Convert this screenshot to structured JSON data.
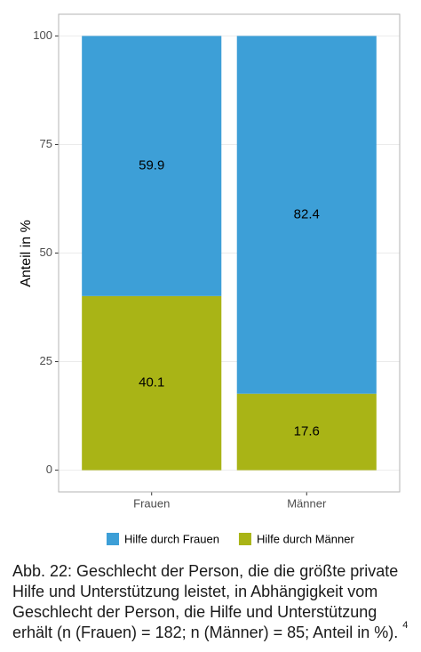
{
  "chart_data": {
    "type": "stacked-bar",
    "y_label": "Anteil in %",
    "categories": [
      "Frauen",
      "Männer"
    ],
    "series": [
      {
        "name": "Hilfe durch Männer",
        "color": "#a9b416",
        "values": [
          40.1,
          17.6
        ]
      },
      {
        "name": "Hilfe durch Frauen",
        "color": "#3d9fd7",
        "values": [
          59.9,
          82.4
        ]
      }
    ],
    "ylim": [
      -5,
      105
    ],
    "yticks": [
      0,
      25,
      50,
      75,
      100
    ],
    "grid": true,
    "legend": "bottom"
  },
  "caption": {
    "lines": [
      "Abb. 22:  Geschlecht der Person, die die größte private",
      "Hilfe und Unterstützung leistet, in Abhängigkeit vom",
      "Geschlecht der Person, die Hilfe und Unterstützung",
      "erhält (n (Frauen) = 182; n (Männer) = 85; Anteil in %)."
    ],
    "note": "4"
  }
}
